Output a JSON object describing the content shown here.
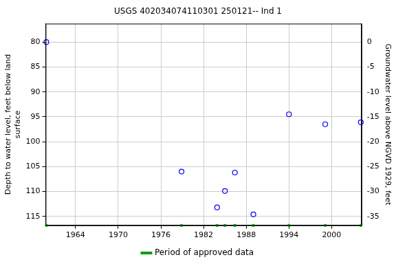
{
  "chart_data": {
    "type": "scatter",
    "title": "USGS 402034074110301 250121-- Ind 1",
    "y_label": [
      "Depth to water level, feet below land",
      "surface"
    ],
    "y2_label": "Groundwater level above NGVD 1929, feet",
    "x": [
      1959.9,
      1978.9,
      1983.9,
      1985.0,
      1986.4,
      1989.0,
      1994.0,
      1999.1,
      2004.1
    ],
    "values": [
      80,
      106,
      113.2,
      109.9,
      106.2,
      114.6,
      94.5,
      96.5,
      96.1
    ],
    "color": "#0000ff",
    "marker": "circle-open",
    "xlim": [
      1959.8,
      2004.2
    ],
    "xticks": [
      1964,
      1970,
      1976,
      1982,
      1988,
      1994,
      2000
    ],
    "ylim": [
      76.3,
      116.8
    ],
    "yticks": [
      80,
      85,
      90,
      95,
      100,
      105,
      110,
      115
    ],
    "y2lim": [
      3.7,
      -36.8
    ],
    "y2ticks": [
      0,
      -5,
      -10,
      -15,
      -20,
      -25,
      -30,
      -35
    ],
    "approved_data": {
      "name": "Period of approved data",
      "color": "#00a000",
      "marker": "square",
      "x": [
        1959.9,
        1978.9,
        1983.9,
        1985.0,
        1986.4,
        1989.0,
        1994.0,
        1999.1,
        2004.1
      ]
    },
    "legend": "bottom",
    "grid": true
  }
}
